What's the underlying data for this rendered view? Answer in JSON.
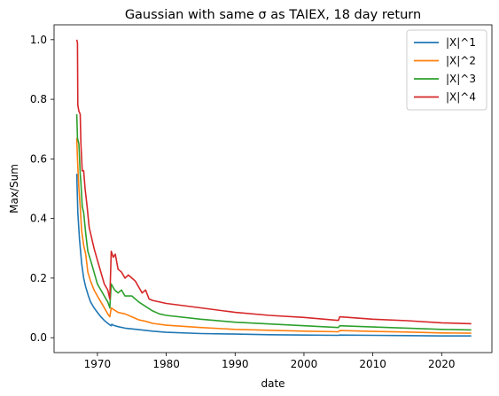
{
  "chart_data": {
    "type": "line",
    "title": "Gaussian with same σ as TAIEX, 18 day return",
    "xlabel": "date",
    "ylabel": "Max/Sum",
    "xlim": [
      1963.7,
      2027.3
    ],
    "ylim": [
      -0.05,
      1.05
    ],
    "xticks": [
      1970,
      1980,
      1990,
      2000,
      2010,
      2020
    ],
    "yticks": [
      0.0,
      0.2,
      0.4,
      0.6,
      0.8,
      1.0
    ],
    "ytick_labels": [
      "0.0",
      "0.2",
      "0.4",
      "0.6",
      "0.8",
      "1.0"
    ],
    "legend_position": "top-right",
    "grid": false,
    "series": [
      {
        "name": "|X|^1",
        "color": "#1f77b4",
        "points": [
          [
            1967.0,
            0.55
          ],
          [
            1967.15,
            0.42
          ],
          [
            1967.4,
            0.33
          ],
          [
            1967.7,
            0.25
          ],
          [
            1968.0,
            0.2
          ],
          [
            1968.3,
            0.17
          ],
          [
            1968.7,
            0.14
          ],
          [
            1969.0,
            0.12
          ],
          [
            1969.5,
            0.1
          ],
          [
            1970.0,
            0.085
          ],
          [
            1970.5,
            0.07
          ],
          [
            1971.0,
            0.058
          ],
          [
            1971.5,
            0.048
          ],
          [
            1971.8,
            0.043
          ],
          [
            1972.0,
            0.04
          ],
          [
            1972.1,
            0.045
          ],
          [
            1972.3,
            0.042
          ],
          [
            1973.0,
            0.037
          ],
          [
            1974.0,
            0.032
          ],
          [
            1976.0,
            0.027
          ],
          [
            1978.0,
            0.022
          ],
          [
            1980.0,
            0.018
          ],
          [
            1985.0,
            0.014
          ],
          [
            1990.0,
            0.012
          ],
          [
            1995.0,
            0.01
          ],
          [
            2000.0,
            0.009
          ],
          [
            2005.0,
            0.008
          ],
          [
            2005.2,
            0.009
          ],
          [
            2010.0,
            0.008
          ],
          [
            2015.0,
            0.007
          ],
          [
            2020.0,
            0.006
          ],
          [
            2024.3,
            0.006
          ]
        ]
      },
      {
        "name": "|X|^2",
        "color": "#ff7f0e",
        "points": [
          [
            1967.0,
            0.67
          ],
          [
            1967.1,
            0.6
          ],
          [
            1967.3,
            0.5
          ],
          [
            1967.5,
            0.44
          ],
          [
            1967.7,
            0.36
          ],
          [
            1968.0,
            0.31
          ],
          [
            1968.3,
            0.28
          ],
          [
            1968.6,
            0.22
          ],
          [
            1969.0,
            0.19
          ],
          [
            1969.5,
            0.16
          ],
          [
            1970.0,
            0.14
          ],
          [
            1970.5,
            0.12
          ],
          [
            1971.0,
            0.1
          ],
          [
            1971.5,
            0.08
          ],
          [
            1971.8,
            0.07
          ],
          [
            1972.0,
            0.1
          ],
          [
            1972.3,
            0.095
          ],
          [
            1973.0,
            0.085
          ],
          [
            1974.0,
            0.08
          ],
          [
            1975.0,
            0.07
          ],
          [
            1976.0,
            0.06
          ],
          [
            1977.0,
            0.055
          ],
          [
            1978.0,
            0.048
          ],
          [
            1980.0,
            0.042
          ],
          [
            1985.0,
            0.034
          ],
          [
            1990.0,
            0.028
          ],
          [
            1995.0,
            0.025
          ],
          [
            2000.0,
            0.022
          ],
          [
            2005.0,
            0.02
          ],
          [
            2005.2,
            0.024
          ],
          [
            2010.0,
            0.021
          ],
          [
            2015.0,
            0.019
          ],
          [
            2020.0,
            0.016
          ],
          [
            2024.3,
            0.015
          ]
        ]
      },
      {
        "name": "|X|^3",
        "color": "#2ca02c",
        "points": [
          [
            1967.0,
            0.75
          ],
          [
            1967.1,
            0.67
          ],
          [
            1967.3,
            0.65
          ],
          [
            1967.5,
            0.55
          ],
          [
            1967.6,
            0.52
          ],
          [
            1967.8,
            0.44
          ],
          [
            1968.0,
            0.42
          ],
          [
            1968.3,
            0.35
          ],
          [
            1968.6,
            0.29
          ],
          [
            1969.0,
            0.26
          ],
          [
            1969.5,
            0.22
          ],
          [
            1970.0,
            0.18
          ],
          [
            1970.5,
            0.16
          ],
          [
            1971.0,
            0.14
          ],
          [
            1971.5,
            0.12
          ],
          [
            1971.8,
            0.1
          ],
          [
            1972.0,
            0.18
          ],
          [
            1972.5,
            0.16
          ],
          [
            1973.0,
            0.15
          ],
          [
            1973.5,
            0.16
          ],
          [
            1974.0,
            0.14
          ],
          [
            1975.0,
            0.14
          ],
          [
            1976.0,
            0.12
          ],
          [
            1977.0,
            0.105
          ],
          [
            1978.0,
            0.09
          ],
          [
            1979.0,
            0.08
          ],
          [
            1980.0,
            0.075
          ],
          [
            1985.0,
            0.062
          ],
          [
            1990.0,
            0.052
          ],
          [
            1995.0,
            0.046
          ],
          [
            2000.0,
            0.04
          ],
          [
            2005.0,
            0.034
          ],
          [
            2005.2,
            0.04
          ],
          [
            2010.0,
            0.036
          ],
          [
            2015.0,
            0.032
          ],
          [
            2020.0,
            0.028
          ],
          [
            2024.3,
            0.026
          ]
        ]
      },
      {
        "name": "|X|^4",
        "color": "#d62728",
        "points": [
          [
            1967.0,
            1.0
          ],
          [
            1967.1,
            0.99
          ],
          [
            1967.15,
            0.78
          ],
          [
            1967.3,
            0.76
          ],
          [
            1967.5,
            0.75
          ],
          [
            1967.6,
            0.65
          ],
          [
            1967.8,
            0.56
          ],
          [
            1968.0,
            0.56
          ],
          [
            1968.2,
            0.5
          ],
          [
            1968.5,
            0.44
          ],
          [
            1968.8,
            0.37
          ],
          [
            1969.0,
            0.35
          ],
          [
            1969.5,
            0.3
          ],
          [
            1970.0,
            0.26
          ],
          [
            1970.5,
            0.22
          ],
          [
            1971.0,
            0.18
          ],
          [
            1971.5,
            0.16
          ],
          [
            1971.8,
            0.13
          ],
          [
            1972.0,
            0.29
          ],
          [
            1972.3,
            0.27
          ],
          [
            1972.6,
            0.28
          ],
          [
            1973.0,
            0.23
          ],
          [
            1973.5,
            0.22
          ],
          [
            1974.0,
            0.2
          ],
          [
            1974.5,
            0.21
          ],
          [
            1975.0,
            0.2
          ],
          [
            1975.5,
            0.19
          ],
          [
            1976.0,
            0.17
          ],
          [
            1976.5,
            0.15
          ],
          [
            1977.0,
            0.16
          ],
          [
            1977.5,
            0.13
          ],
          [
            1978.0,
            0.125
          ],
          [
            1980.0,
            0.115
          ],
          [
            1985.0,
            0.1
          ],
          [
            1990.0,
            0.085
          ],
          [
            1995.0,
            0.075
          ],
          [
            2000.0,
            0.068
          ],
          [
            2005.0,
            0.058
          ],
          [
            2005.2,
            0.07
          ],
          [
            2010.0,
            0.062
          ],
          [
            2015.0,
            0.057
          ],
          [
            2020.0,
            0.05
          ],
          [
            2024.3,
            0.047
          ]
        ]
      }
    ]
  }
}
